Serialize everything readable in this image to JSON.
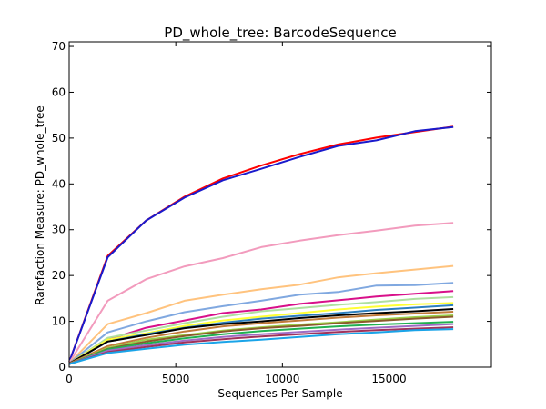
{
  "chart_data": {
    "type": "line",
    "title": "PD_whole_tree: BarcodeSequence",
    "xlabel": "Sequences Per Sample",
    "ylabel": "Rarefaction Measure: PD_whole_tree",
    "xlim": [
      0,
      19800
    ],
    "ylim": [
      0,
      71
    ],
    "xticks": [
      0,
      5000,
      10000,
      15000
    ],
    "yticks": [
      0,
      10,
      20,
      30,
      40,
      50,
      60,
      70
    ],
    "grid": false,
    "legend": "none",
    "x": [
      10,
      1810,
      3610,
      5410,
      7210,
      9010,
      10810,
      12610,
      14410,
      16210,
      18010
    ],
    "series": [
      {
        "color": "#ff0000",
        "values": [
          1.2,
          24.3,
          32.0,
          37.2,
          41.2,
          44.0,
          46.5,
          48.6,
          50.1,
          51.3,
          52.5
        ]
      },
      {
        "color": "#1a1acc",
        "values": [
          1.2,
          24.0,
          32.0,
          37.0,
          40.8,
          43.3,
          45.9,
          48.3,
          49.5,
          51.5,
          52.4
        ]
      },
      {
        "color": "#f29bbd",
        "values": [
          1.0,
          14.5,
          19.2,
          22.0,
          23.8,
          26.2,
          27.6,
          28.8,
          29.8,
          30.9,
          31.5
        ]
      },
      {
        "color": "#ffc37e",
        "values": [
          0.9,
          9.4,
          11.8,
          14.5,
          15.8,
          17.0,
          18.0,
          19.6,
          20.5,
          21.3,
          22.1
        ]
      },
      {
        "color": "#80a8e0",
        "values": [
          0.9,
          7.6,
          10.0,
          12.0,
          13.3,
          14.5,
          15.8,
          16.4,
          17.8,
          17.9,
          18.4
        ]
      },
      {
        "color": "#d8108a",
        "values": [
          0.9,
          6.0,
          8.6,
          10.2,
          11.8,
          12.6,
          13.8,
          14.6,
          15.4,
          16.0,
          16.6
        ]
      },
      {
        "color": "#aee0a0",
        "values": [
          0.8,
          6.4,
          8.0,
          9.6,
          11.0,
          12.2,
          12.9,
          13.6,
          14.2,
          14.9,
          15.3
        ]
      },
      {
        "color": "#ffff33",
        "values": [
          0.8,
          6.0,
          7.4,
          9.0,
          10.2,
          11.0,
          11.8,
          12.6,
          13.2,
          13.7,
          14.0
        ]
      },
      {
        "color": "#2d7fbf",
        "values": [
          0.8,
          5.6,
          7.2,
          8.6,
          9.7,
          10.6,
          11.2,
          11.8,
          12.5,
          13.0,
          13.5
        ]
      },
      {
        "color": "#000000",
        "values": [
          0.8,
          5.6,
          7.0,
          8.5,
          9.4,
          10.0,
          10.7,
          11.3,
          11.8,
          12.2,
          12.7
        ]
      },
      {
        "color": "#c17a3a",
        "values": [
          0.8,
          4.6,
          6.4,
          7.8,
          8.9,
          9.6,
          10.2,
          10.8,
          11.3,
          11.7,
          12.1
        ]
      },
      {
        "color": "#9bd04a",
        "values": [
          0.7,
          4.2,
          6.0,
          7.0,
          8.0,
          8.7,
          9.3,
          9.8,
          10.4,
          10.9,
          11.3
        ]
      },
      {
        "color": "#8b5a2b",
        "values": [
          0.7,
          4.0,
          5.6,
          6.8,
          7.8,
          8.5,
          9.0,
          9.6,
          10.1,
          10.6,
          11.0
        ]
      },
      {
        "color": "#20b050",
        "values": [
          0.7,
          3.9,
          5.2,
          6.3,
          7.2,
          7.9,
          8.4,
          8.9,
          9.3,
          9.6,
          9.9
        ]
      },
      {
        "color": "#9e6bc4",
        "values": [
          0.7,
          3.6,
          4.8,
          5.8,
          6.6,
          7.2,
          7.7,
          8.2,
          8.6,
          9.0,
          9.4
        ]
      },
      {
        "color": "#a0325a",
        "values": [
          0.7,
          3.3,
          4.4,
          5.4,
          6.1,
          6.7,
          7.2,
          7.7,
          8.1,
          8.4,
          8.7
        ]
      },
      {
        "color": "#1aa4e8",
        "values": [
          0.7,
          3.1,
          4.0,
          4.9,
          5.5,
          6.0,
          6.6,
          7.2,
          7.6,
          8.1,
          8.3
        ]
      }
    ]
  }
}
